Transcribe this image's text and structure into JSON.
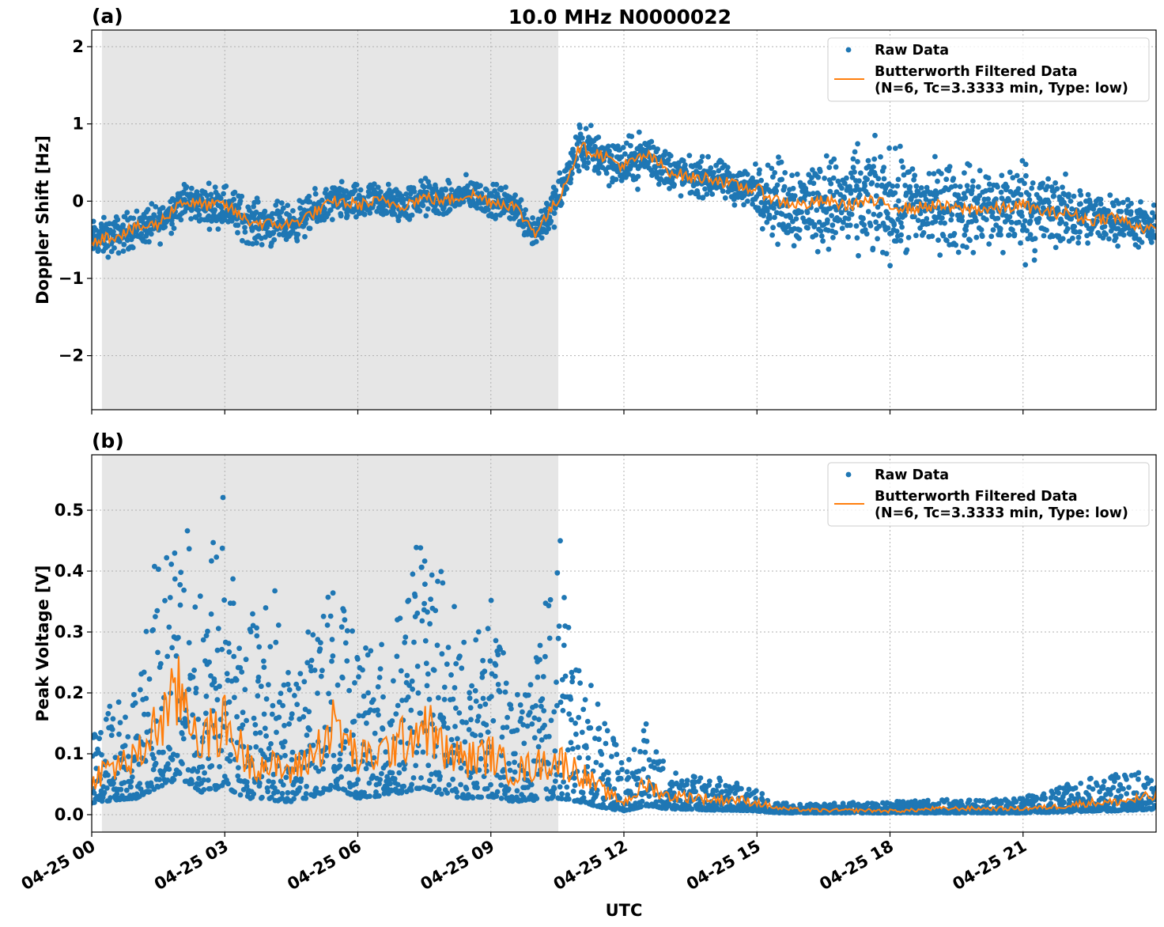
{
  "title": "10.0 MHz N0000022",
  "chart_data": [
    {
      "type": "scatter",
      "panel_label": "(a)",
      "title": "10.0 MHz N0000022",
      "xlabel": "",
      "ylabel": "Doppler Shift [Hz]",
      "xlim_hours": [
        0,
        24
      ],
      "ylim": [
        -2.7,
        2.215
      ],
      "yticks": [
        -2,
        -1,
        0,
        1,
        2
      ],
      "ytick_labels": [
        "−2",
        "−1",
        "0",
        "1",
        "2"
      ],
      "xtick_hours": [
        0,
        3,
        6,
        9,
        12,
        15,
        18,
        21
      ],
      "xtick_labels": [
        "04-25 00",
        "04-25 03",
        "04-25 06",
        "04-25 09",
        "04-25 12",
        "04-25 15",
        "04-25 18",
        "04-25 21"
      ],
      "grid": true,
      "night_shading_hours": [
        0.23,
        10.52
      ],
      "legend": {
        "placement": "top-right",
        "raw": "Raw Data",
        "filtered_line1": "Butterworth Filtered Data",
        "filtered_line2": "(N=6, Tc=3.3333 min, Type: low)"
      },
      "x_hours": [
        0,
        0.5,
        1,
        1.5,
        2,
        2.5,
        3,
        3.5,
        4,
        4.5,
        5,
        5.5,
        6,
        6.5,
        7,
        7.5,
        8,
        8.5,
        9,
        9.5,
        10,
        10.5,
        11,
        11.5,
        12,
        12.5,
        13,
        13.5,
        14,
        14.5,
        15,
        15.5,
        16,
        16.5,
        17,
        17.5,
        18,
        18.5,
        19,
        19.5,
        20,
        20.5,
        21,
        21.5,
        22,
        22.5,
        23,
        23.5,
        24
      ],
      "filtered": [
        -0.5,
        -0.45,
        -0.35,
        -0.3,
        0.0,
        -0.05,
        -0.05,
        -0.25,
        -0.3,
        -0.3,
        -0.15,
        0.0,
        -0.05,
        0.0,
        -0.05,
        0.05,
        0.0,
        0.1,
        0.0,
        -0.05,
        -0.4,
        0.0,
        0.7,
        0.6,
        0.45,
        0.6,
        0.4,
        0.3,
        0.3,
        0.2,
        0.15,
        0.0,
        -0.05,
        0.0,
        -0.05,
        0.0,
        -0.05,
        -0.1,
        -0.05,
        -0.1,
        -0.1,
        -0.1,
        -0.05,
        -0.15,
        -0.15,
        -0.25,
        -0.2,
        -0.3,
        -0.4
      ],
      "raw_spread": [
        0.35,
        0.35,
        0.35,
        0.35,
        0.35,
        0.35,
        0.4,
        0.4,
        0.4,
        0.35,
        0.35,
        0.35,
        0.35,
        0.35,
        0.35,
        0.35,
        0.3,
        0.3,
        0.3,
        0.3,
        0.35,
        0.4,
        0.45,
        0.45,
        0.45,
        0.45,
        0.4,
        0.35,
        0.35,
        0.35,
        0.45,
        0.8,
        0.8,
        0.85,
        0.9,
        1.0,
        1.0,
        0.9,
        0.8,
        0.8,
        0.8,
        0.8,
        0.9,
        0.8,
        0.6,
        0.5,
        0.45,
        0.4,
        0.4
      ]
    },
    {
      "type": "scatter",
      "panel_label": "(b)",
      "xlabel": "UTC",
      "ylabel": "Peak Voltage [V]",
      "xlim_hours": [
        0,
        24
      ],
      "ylim": [
        -0.0286,
        0.591
      ],
      "yticks": [
        0.0,
        0.1,
        0.2,
        0.3,
        0.4,
        0.5
      ],
      "ytick_labels": [
        "0.0",
        "0.1",
        "0.2",
        "0.3",
        "0.4",
        "0.5"
      ],
      "xtick_hours": [
        0,
        3,
        6,
        9,
        12,
        15,
        18,
        21
      ],
      "xtick_labels": [
        "04-25 00",
        "04-25 03",
        "04-25 06",
        "04-25 09",
        "04-25 12",
        "04-25 15",
        "04-25 18",
        "04-25 21"
      ],
      "grid": true,
      "night_shading_hours": [
        0.23,
        10.52
      ],
      "legend": {
        "placement": "top-right",
        "raw": "Raw Data",
        "filtered_line1": "Butterworth Filtered Data",
        "filtered_line2": "(N=6, Tc=3.3333 min, Type: low)"
      },
      "x_hours": [
        0,
        0.5,
        1,
        1.5,
        2,
        2.5,
        3,
        3.5,
        4,
        4.5,
        5,
        5.5,
        6,
        6.5,
        7,
        7.5,
        8,
        8.5,
        9,
        9.5,
        10,
        10.5,
        11,
        11.5,
        12,
        12.5,
        13,
        13.5,
        14,
        14.5,
        15,
        15.5,
        16,
        16.5,
        17,
        17.5,
        18,
        18.5,
        19,
        19.5,
        20,
        20.5,
        21,
        21.5,
        22,
        22.5,
        23,
        23.5,
        24
      ],
      "filtered": [
        0.06,
        0.08,
        0.09,
        0.15,
        0.2,
        0.12,
        0.15,
        0.09,
        0.08,
        0.07,
        0.1,
        0.15,
        0.09,
        0.1,
        0.12,
        0.15,
        0.1,
        0.09,
        0.1,
        0.07,
        0.08,
        0.09,
        0.07,
        0.04,
        0.02,
        0.05,
        0.03,
        0.03,
        0.025,
        0.025,
        0.02,
        0.01,
        0.008,
        0.007,
        0.007,
        0.007,
        0.006,
        0.007,
        0.01,
        0.01,
        0.01,
        0.01,
        0.01,
        0.012,
        0.015,
        0.02,
        0.02,
        0.025,
        0.03
      ],
      "raw_max": [
        0.13,
        0.2,
        0.22,
        0.45,
        0.55,
        0.35,
        0.56,
        0.3,
        0.45,
        0.2,
        0.34,
        0.38,
        0.28,
        0.28,
        0.34,
        0.5,
        0.4,
        0.26,
        0.36,
        0.2,
        0.25,
        0.49,
        0.23,
        0.2,
        0.08,
        0.15,
        0.07,
        0.065,
        0.06,
        0.06,
        0.04,
        0.02,
        0.018,
        0.018,
        0.02,
        0.02,
        0.02,
        0.025,
        0.025,
        0.025,
        0.025,
        0.025,
        0.03,
        0.035,
        0.05,
        0.06,
        0.065,
        0.07,
        0.07
      ],
      "colors": {
        "raw": "#1f77b4",
        "filtered": "#ff7f0e",
        "night": "#e6e6e6"
      }
    }
  ]
}
